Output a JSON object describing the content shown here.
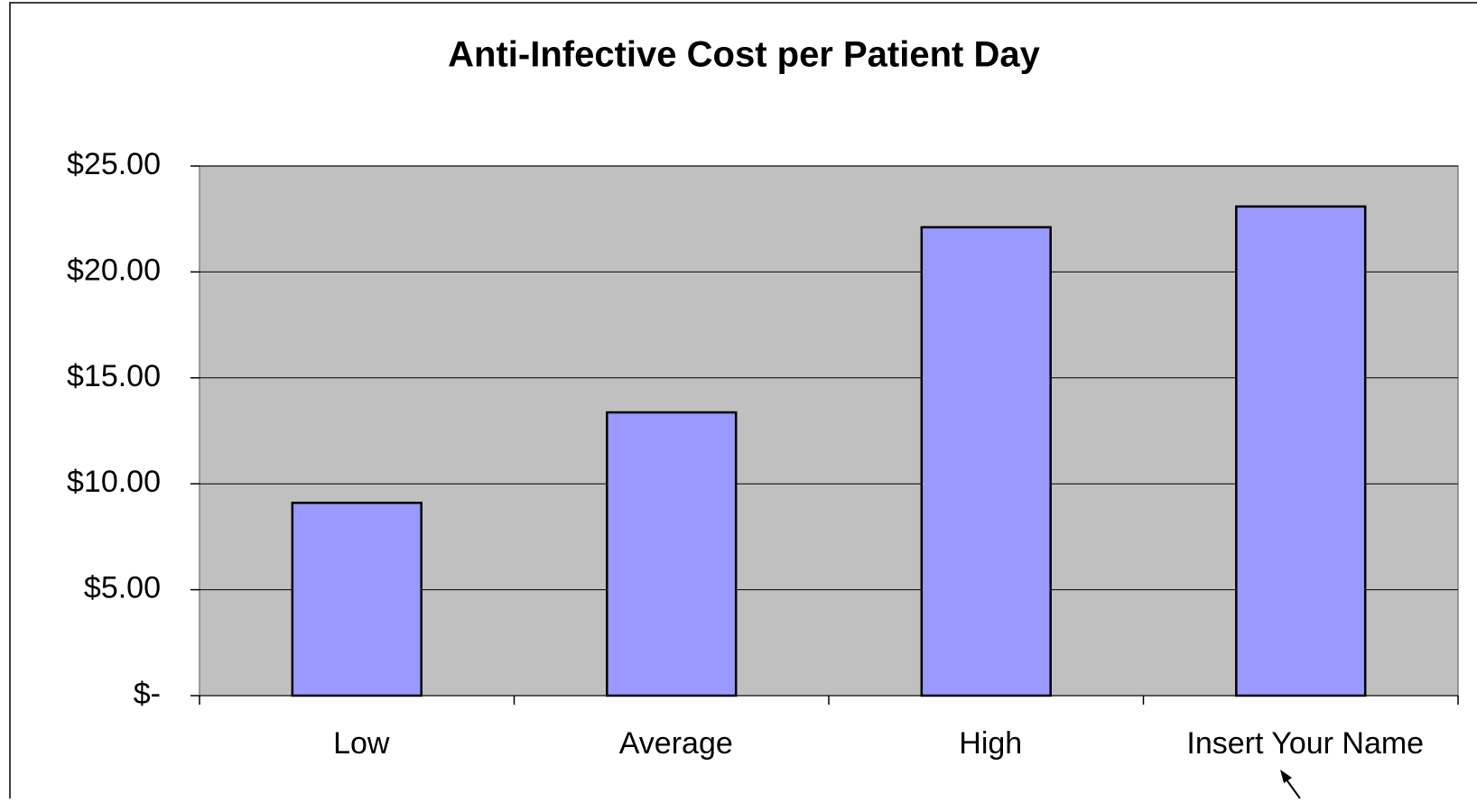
{
  "chart_data": {
    "type": "bar",
    "title": "Anti-Infective Cost per Patient Day",
    "categories": [
      "Low",
      "Average",
      "High",
      "Insert Your Name"
    ],
    "values": [
      9.1,
      13.37,
      22.11,
      23.09
    ],
    "color": "#9999ff",
    "ylim": [
      0,
      25
    ],
    "yticks": [
      {
        "value": 0,
        "label": "$-"
      },
      {
        "value": 5,
        "label": "$5.00"
      },
      {
        "value": 10,
        "label": "$10.00"
      },
      {
        "value": 15,
        "label": "$15.00"
      },
      {
        "value": 20,
        "label": "$20.00"
      },
      {
        "value": 25,
        "label": "$25.00"
      }
    ],
    "grid": true
  }
}
